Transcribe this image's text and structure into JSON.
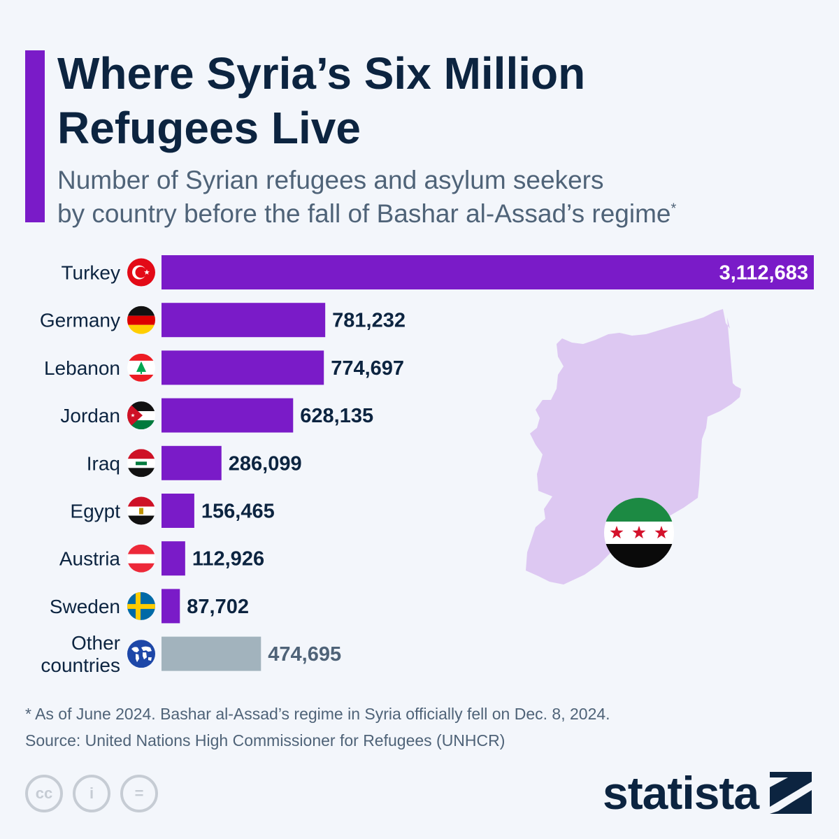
{
  "header": {
    "title_lines": [
      "Where Syria’s Six Million",
      "Refugees Live"
    ],
    "subtitle_lines": [
      "Number of Syrian refugees and asylum seekers",
      "by country before the fall of Bashar al-Assad’s regime"
    ],
    "subtitle_mark": "*"
  },
  "chart_data": {
    "type": "bar",
    "orientation": "horizontal",
    "categories": [
      "Turkey",
      "Germany",
      "Lebanon",
      "Jordan",
      "Iraq",
      "Egypt",
      "Austria",
      "Sweden",
      "Other countries"
    ],
    "values": [
      3112683,
      781232,
      774697,
      628135,
      286099,
      156465,
      112926,
      87702,
      474695
    ],
    "value_labels": [
      "3,112,683",
      "781,232",
      "774,697",
      "628,135",
      "286,099",
      "156,465",
      "112,926",
      "87,702",
      "474,695"
    ],
    "flags": [
      "turkey-flag-icon",
      "germany-flag-icon",
      "lebanon-flag-icon",
      "jordan-flag-icon",
      "iraq-flag-icon",
      "egypt-flag-icon",
      "austria-flag-icon",
      "sweden-flag-icon",
      "world-globe-icon"
    ],
    "bar_colors": [
      "#7a1bc8",
      "#7a1bc8",
      "#7a1bc8",
      "#7a1bc8",
      "#7a1bc8",
      "#7a1bc8",
      "#7a1bc8",
      "#7a1bc8",
      "#a2b3bd"
    ],
    "xlim": [
      0,
      3112683
    ],
    "grid": false,
    "title": "",
    "xlabel": "",
    "ylabel": ""
  },
  "illustration": {
    "map_icon": "syria-map-icon",
    "flag_icon": "syrian-independence-flag-icon",
    "map_color": "#ddc8f2"
  },
  "footnote": {
    "note": "* As of June 2024. Bashar al-Assad’s regime in Syria officially fell on Dec. 8, 2024.",
    "source": "Source: United Nations High Commissioner for Refugees (UNHCR)"
  },
  "license": {
    "icons": [
      "cc-icon",
      "attribution-icon",
      "no-derivatives-icon"
    ],
    "labels": [
      "cc",
      "i",
      "="
    ]
  },
  "brand": {
    "name": "statista",
    "icon": "statista-logo-icon"
  },
  "colors": {
    "accent": "#7a1bc8",
    "other": "#a2b3bd",
    "title": "#0c2440",
    "subtitle": "#4f6378"
  }
}
